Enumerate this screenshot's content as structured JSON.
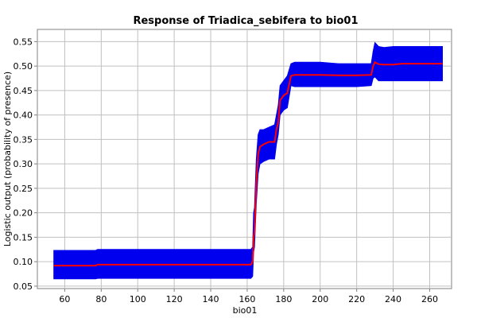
{
  "chart_data": {
    "type": "area",
    "title": "Response of Triadica_sebifera to bio01",
    "xlabel": "bio01",
    "ylabel": "Logistic output (probability of presence)",
    "xlim": [
      45,
      272
    ],
    "ylim": [
      0.045,
      0.575
    ],
    "x_ticks": [
      60,
      80,
      100,
      120,
      140,
      160,
      180,
      200,
      220,
      240,
      260
    ],
    "y_ticks": [
      0.05,
      0.1,
      0.15,
      0.2,
      0.25,
      0.3,
      0.35,
      0.4,
      0.45,
      0.5,
      0.55
    ],
    "grid": true,
    "colors": {
      "band": "#0000ee",
      "mean": "#ff0000"
    },
    "series": [
      {
        "x": [
          54,
          77,
          78,
          130,
          162,
          163,
          163.5,
          164,
          165,
          166,
          167,
          169,
          172,
          175,
          176,
          177,
          178,
          180,
          182,
          184,
          186,
          200,
          210,
          220,
          228,
          229,
          230,
          232,
          235,
          240,
          245,
          250,
          260,
          267
        ],
        "mean": [
          0.092,
          0.092,
          0.094,
          0.094,
          0.094,
          0.1,
          0.15,
          0.16,
          0.26,
          0.32,
          0.335,
          0.34,
          0.345,
          0.345,
          0.37,
          0.385,
          0.43,
          0.44,
          0.445,
          0.48,
          0.482,
          0.482,
          0.481,
          0.481,
          0.482,
          0.5,
          0.508,
          0.504,
          0.503,
          0.503,
          0.505,
          0.505,
          0.505,
          0.505
        ],
        "upper": [
          0.123,
          0.123,
          0.125,
          0.125,
          0.125,
          0.13,
          0.2,
          0.21,
          0.31,
          0.36,
          0.37,
          0.37,
          0.375,
          0.38,
          0.4,
          0.42,
          0.46,
          0.47,
          0.48,
          0.505,
          0.508,
          0.508,
          0.505,
          0.505,
          0.505,
          0.53,
          0.548,
          0.54,
          0.538,
          0.54,
          0.54,
          0.54,
          0.54,
          0.54
        ],
        "lower": [
          0.065,
          0.065,
          0.066,
          0.066,
          0.066,
          0.07,
          0.12,
          0.13,
          0.22,
          0.28,
          0.3,
          0.305,
          0.31,
          0.31,
          0.34,
          0.36,
          0.4,
          0.41,
          0.415,
          0.46,
          0.458,
          0.458,
          0.458,
          0.458,
          0.46,
          0.475,
          0.478,
          0.47,
          0.47,
          0.47,
          0.47,
          0.47,
          0.47,
          0.47
        ]
      }
    ]
  }
}
